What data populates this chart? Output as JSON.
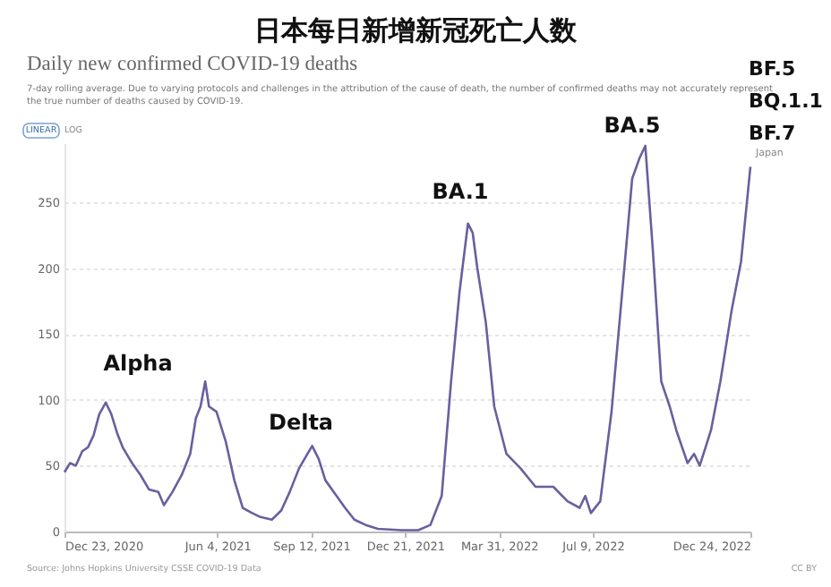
{
  "chart_data": {
    "type": "line",
    "title": "日本每日新增新冠死亡人数",
    "subtitle": "Daily new confirmed COVID-19 deaths",
    "annotations": [
      "7-day rolling average. Due to varying protocols and challenges in the attribution of the cause of death, the number of confirmed deaths may not accurately represent the true number of deaths caused by COVID-19.",
      "LINEAR",
      "LOG",
      "BA.5",
      "BF.5",
      "BQ.1.1",
      "BF.7",
      "Source: Johns Hopkins University CSSE COVID-19 Data",
      "CC BY",
      "Alpha",
      "Delta",
      "BA.1"
    ],
    "xlim": [
      "2020-12-23",
      "2022-12-24"
    ],
    "xticks": [
      {
        "value": "2020-12-23",
        "label": "Dec 23, 2020"
      },
      {
        "value": "2021-06-04",
        "label": "Jun 4, 2021"
      },
      {
        "value": "2021-09-12",
        "label": "Sep 12, 2021"
      },
      {
        "value": "2021-12-21",
        "label": "Dec 21, 2021"
      },
      {
        "value": "2022-03-31",
        "label": "Mar 31, 2022"
      },
      {
        "value": "2022-07-09",
        "label": "Jul 9, 2022"
      },
      {
        "value": "2022-12-24",
        "label": "Dec 24, 2022"
      }
    ],
    "ylim": [
      0,
      295
    ],
    "yticks": [
      0,
      50,
      100,
      150,
      200,
      250
    ],
    "grid": "y",
    "x": [
      "2020-12-23",
      "2020-12-29",
      "2021-01-04",
      "2021-01-11",
      "2021-01-17",
      "2021-01-23",
      "2021-01-29",
      "2021-02-05",
      "2021-02-11",
      "2021-02-17",
      "2021-02-23",
      "2021-03-05",
      "2021-03-14",
      "2021-03-23",
      "2021-04-02",
      "2021-04-08",
      "2021-04-17",
      "2021-04-27",
      "2021-05-06",
      "2021-05-12",
      "2021-05-17",
      "2021-05-22",
      "2021-05-26",
      "2021-06-03",
      "2021-06-13",
      "2021-06-22",
      "2021-07-01",
      "2021-07-11",
      "2021-07-20",
      "2021-08-01",
      "2021-08-11",
      "2021-08-20",
      "2021-08-30",
      "2021-09-08",
      "2021-09-13",
      "2021-09-20",
      "2021-09-27",
      "2021-10-09",
      "2021-10-18",
      "2021-10-28",
      "2021-11-09",
      "2021-11-22",
      "2021-12-17",
      "2022-01-04",
      "2022-01-17",
      "2022-01-29",
      "2022-02-08",
      "2022-02-17",
      "2022-02-26",
      "2022-03-03",
      "2022-03-08",
      "2022-03-17",
      "2022-03-26",
      "2022-04-08",
      "2022-04-23",
      "2022-05-09",
      "2022-05-28",
      "2022-06-12",
      "2022-06-25",
      "2022-07-01",
      "2022-07-07",
      "2022-07-17",
      "2022-07-29",
      "2022-08-11",
      "2022-08-20",
      "2022-08-28",
      "2022-09-03",
      "2022-09-11",
      "2022-09-20",
      "2022-09-29",
      "2022-10-06",
      "2022-10-18",
      "2022-10-25",
      "2022-10-31",
      "2022-11-12",
      "2022-11-22",
      "2022-12-04",
      "2022-12-14",
      "2022-12-24"
    ],
    "series": [
      {
        "name": "Japan",
        "color": "#6a5f9e",
        "values": [
          45,
          52,
          50,
          61,
          64,
          73,
          89,
          98,
          89,
          75,
          64,
          52,
          43,
          32,
          30,
          20,
          30,
          43,
          59,
          86,
          95,
          114,
          95,
          91,
          68,
          39,
          18,
          14,
          11,
          9,
          16,
          30,
          48,
          59,
          65,
          55,
          39,
          27,
          18,
          9,
          5,
          2,
          1,
          1,
          5,
          27,
          114,
          182,
          234,
          227,
          200,
          159,
          95,
          59,
          48,
          34,
          34,
          23,
          18,
          27,
          14,
          23,
          91,
          195,
          268,
          284,
          293,
          214,
          114,
          95,
          77,
          52,
          59,
          50,
          77,
          114,
          168,
          205,
          277
        ]
      }
    ]
  }
}
